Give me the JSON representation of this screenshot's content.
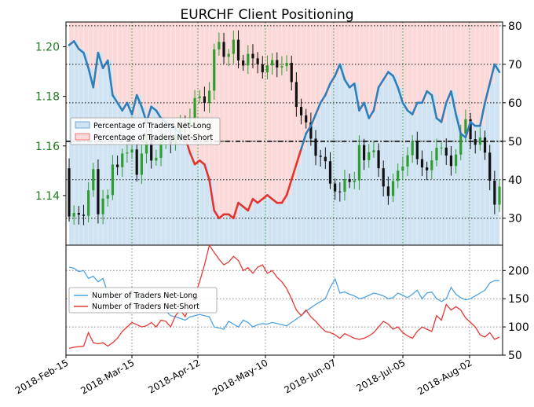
{
  "title": "EURCHF Client Positioning",
  "colors": {
    "long_blue": "#2f7fba",
    "short_red": "#e3342f",
    "candle_green": "#2e9e2e",
    "candle_black": "#111111",
    "tick_green": "#1f7a1f",
    "long_fill": "#cfe3f3",
    "short_fill": "#fbd9d9",
    "lower_long": "#4ea3e3",
    "lower_short": "#e53935"
  },
  "chart_data": [
    {
      "type": "line",
      "panel": "top",
      "x_ticks": [
        "2018-Feb-15",
        "2018-Mar-15",
        "2018-Apr-12",
        "2018-May-10",
        "2018-Jun-07",
        "2018-Jul-05",
        "2018-Aug-02"
      ],
      "left_axis": {
        "ticks": [
          "1.14",
          "1.16",
          "1.18",
          "1.20"
        ],
        "range": [
          1.12,
          1.21
        ]
      },
      "right_axis": {
        "ticks": [
          "30",
          "40",
          "50",
          "60",
          "70",
          "80"
        ],
        "range": [
          23,
          81
        ]
      },
      "legend": [
        "Percentage of Traders Net-Long",
        "Percentage of Traders Net-Short"
      ],
      "reference_line": 50,
      "series": [
        {
          "name": "Percentage of Traders Net-Long",
          "x": [
            0,
            2,
            4,
            6,
            8,
            10,
            12,
            14,
            16,
            18,
            20,
            22,
            24,
            26,
            28,
            30,
            32,
            34,
            36,
            38,
            40,
            42,
            44,
            46,
            48,
            50,
            52,
            54,
            56,
            58,
            60,
            62,
            64,
            66,
            68,
            70,
            72,
            74,
            76,
            78,
            80,
            82,
            84,
            86,
            88,
            90,
            92,
            94,
            96,
            98,
            100,
            102,
            104,
            106,
            108,
            110,
            112,
            114,
            116,
            118,
            120,
            122,
            124,
            126,
            128,
            130,
            132,
            134,
            136,
            138,
            140,
            142,
            144,
            146,
            148,
            150,
            152,
            154,
            156,
            158,
            160,
            162,
            164,
            166,
            168,
            170,
            172,
            174,
            176,
            178
          ],
          "values": [
            75,
            76,
            74,
            73,
            69,
            64,
            73,
            69,
            71,
            62,
            60,
            58,
            60,
            57,
            62,
            59,
            55,
            59,
            58,
            56,
            55,
            54,
            53,
            52,
            51,
            47,
            44,
            45,
            44,
            40,
            32,
            30,
            31,
            31,
            30,
            34,
            33,
            32,
            35,
            34,
            35,
            36,
            35,
            34,
            34,
            36,
            40,
            44,
            48,
            52,
            54,
            57,
            60,
            62,
            65,
            67,
            70,
            66,
            64,
            65,
            58,
            60,
            56,
            58,
            64,
            66,
            68,
            67,
            64,
            60,
            58,
            57,
            60,
            60,
            63,
            62,
            56,
            55,
            60,
            63,
            57,
            52,
            51,
            55,
            54,
            54,
            60,
            65,
            70,
            68
          ]
        },
        {
          "name": "Percentage of Traders Net-Short",
          "note_none": true
        }
      ],
      "price_range_observed": [
        1.128,
        1.203
      ]
    },
    {
      "type": "line",
      "panel": "bottom",
      "right_axis": {
        "ticks": [
          "50",
          "100",
          "150",
          "200"
        ],
        "range": [
          50,
          245
        ]
      },
      "legend": [
        "Number of Traders Net-Long",
        "Number of Traders Net-Short"
      ],
      "series": [
        {
          "name": "Number of Traders Net-Long",
          "values": [
            206,
            204,
            198,
            200,
            186,
            190,
            180,
            186,
            160,
            165,
            150,
            150,
            155,
            148,
            152,
            150,
            146,
            140,
            138,
            130,
            128,
            120,
            118,
            115,
            112,
            118,
            120,
            122,
            120,
            118,
            100,
            98,
            96,
            110,
            105,
            100,
            112,
            108,
            100,
            104,
            106,
            105,
            108,
            106,
            104,
            102,
            108,
            114,
            120,
            128,
            134,
            140,
            145,
            150,
            170,
            185,
            160,
            162,
            158,
            155,
            150,
            152,
            156,
            160,
            158,
            155,
            150,
            152,
            160,
            156,
            152,
            158,
            165,
            150,
            160,
            162,
            150,
            145,
            150,
            170,
            158,
            152,
            148,
            150,
            155,
            160,
            165,
            178,
            182,
            182
          ]
        },
        {
          "name": "Number of Traders Net-Short",
          "values": [
            62,
            64,
            65,
            66,
            90,
            72,
            70,
            72,
            66,
            72,
            80,
            92,
            100,
            108,
            104,
            100,
            102,
            108,
            100,
            112,
            110,
            100,
            120,
            130,
            118,
            140,
            156,
            180,
            210,
            245,
            232,
            220,
            210,
            215,
            225,
            218,
            200,
            205,
            195,
            206,
            210,
            195,
            200,
            188,
            180,
            168,
            150,
            130,
            120,
            130,
            118,
            110,
            100,
            92,
            90,
            86,
            80,
            88,
            84,
            80,
            78,
            80,
            84,
            90,
            100,
            110,
            105,
            96,
            100,
            90,
            84,
            80,
            92,
            100,
            96,
            92,
            120,
            112,
            140,
            130,
            136,
            130,
            116,
            108,
            100,
            86,
            82,
            90,
            78,
            82
          ]
        }
      ]
    }
  ]
}
